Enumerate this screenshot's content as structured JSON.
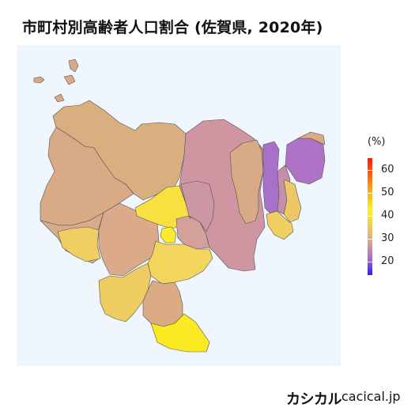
{
  "title": "市町村別高齢者人口割合 (佐賀県, 2020年)",
  "legend": {
    "unit": "(%)",
    "ticks": [
      "60",
      "50",
      "40",
      "30",
      "20"
    ],
    "min": 15,
    "max": 65,
    "colors": {
      "low": "#2b1cff",
      "mid_low": "#a56ec8",
      "mid": "#d8a58c",
      "mid_high": "#ffee22",
      "high": "#ff1a0e"
    }
  },
  "brand": {
    "name": "カシカル",
    "url": "cacical.jp"
  }
}
